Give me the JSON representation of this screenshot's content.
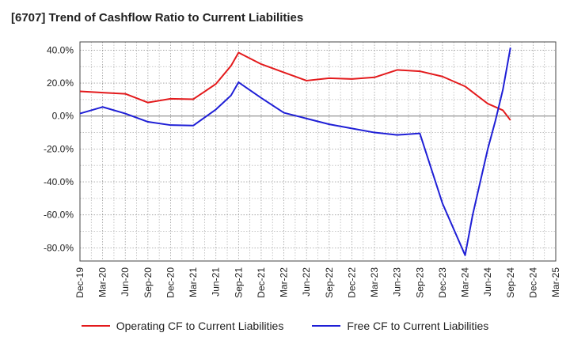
{
  "chart_data": {
    "type": "line",
    "title": "[6707]  Trend of Cashflow Ratio to Current Liabilities",
    "x": [
      "Dec-19",
      "Mar-20",
      "Jun-20",
      "Sep-20",
      "Dec-20",
      "Mar-21",
      "Jun-21",
      "Sep-21",
      "Dec-21",
      "Mar-22",
      "Jun-22",
      "Sep-22",
      "Dec-22",
      "Mar-23",
      "Jun-23",
      "Sep-23",
      "Dec-23",
      "Mar-24",
      "Jun-24",
      "Sep-24",
      "Dec-24",
      "Mar-25"
    ],
    "y_ticks": [
      "40.0%",
      "20.0%",
      "0.0%",
      "-20.0%",
      "-40.0%",
      "-60.0%",
      "-80.0%"
    ],
    "y_tick_values": [
      40,
      20,
      0,
      -20,
      -40,
      -60,
      -80
    ],
    "ylim": [
      -88,
      45
    ],
    "grid": true,
    "legend_position": "bottom",
    "series": [
      {
        "name": "Operating CF to Current Liabilities",
        "color": "#e31a1c",
        "points": [
          [
            "Dec-19",
            15.0
          ],
          [
            "Mar-20",
            14.2
          ],
          [
            "Jun-20",
            13.5
          ],
          [
            "Sep-20",
            8.2
          ],
          [
            "Dec-20",
            10.5
          ],
          [
            "Mar-21",
            10.2
          ],
          [
            "Jun-21",
            19.5
          ],
          [
            "Aug-21",
            30.5
          ],
          [
            "Sep-21",
            38.5
          ],
          [
            "Dec-21",
            31.5
          ],
          [
            "Mar-22",
            26.5
          ],
          [
            "Jun-22",
            21.5
          ],
          [
            "Sep-22",
            23.0
          ],
          [
            "Dec-22",
            22.5
          ],
          [
            "Mar-23",
            23.5
          ],
          [
            "Jun-23",
            28.0
          ],
          [
            "Sep-23",
            27.2
          ],
          [
            "Dec-23",
            24.0
          ],
          [
            "Mar-24",
            18.0
          ],
          [
            "May-24",
            11.0
          ],
          [
            "Jun-24",
            7.5
          ],
          [
            "Aug-24",
            3.5
          ],
          [
            "Sep-24",
            -2.5
          ]
        ]
      },
      {
        "name": "Free CF to Current Liabilities",
        "color": "#1f1fd6",
        "points": [
          [
            "Dec-19",
            1.5
          ],
          [
            "Mar-20",
            5.5
          ],
          [
            "Jun-20",
            1.5
          ],
          [
            "Sep-20",
            -3.5
          ],
          [
            "Dec-20",
            -5.5
          ],
          [
            "Mar-21",
            -5.8
          ],
          [
            "Jun-21",
            4.0
          ],
          [
            "Aug-21",
            12.5
          ],
          [
            "Sep-21",
            20.5
          ],
          [
            "Dec-21",
            11.0
          ],
          [
            "Mar-22",
            2.0
          ],
          [
            "Jun-22",
            -1.5
          ],
          [
            "Sep-22",
            -5.0
          ],
          [
            "Dec-22",
            -7.5
          ],
          [
            "Mar-23",
            -10.0
          ],
          [
            "Jun-23",
            -11.5
          ],
          [
            "Sep-23",
            -10.5
          ],
          [
            "Dec-23",
            -53.0
          ],
          [
            "Mar-24",
            -84.5
          ],
          [
            "Apr-24",
            -60.0
          ],
          [
            "Jun-24",
            -20.0
          ],
          [
            "Jul-24",
            -3.0
          ],
          [
            "Aug-24",
            16.0
          ],
          [
            "Sep-24",
            41.5
          ]
        ]
      }
    ]
  }
}
